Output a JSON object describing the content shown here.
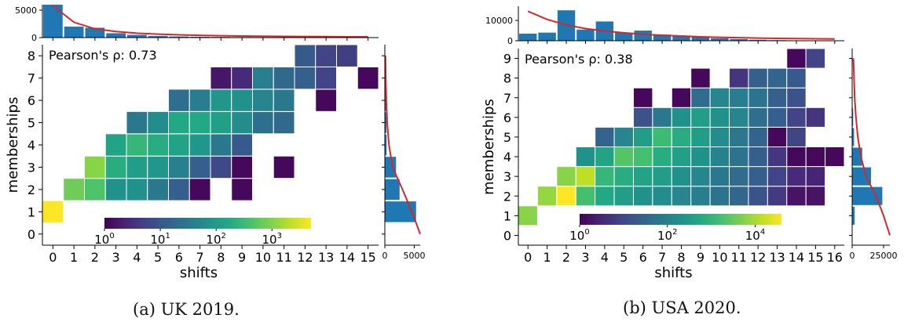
{
  "chart_data": [
    {
      "type": "heatmap",
      "subcaption": "(a) UK 2019.",
      "xlabel": "shifts",
      "ylabel": "memberships",
      "x_ticks": [
        "0",
        "1",
        "2",
        "3",
        "4",
        "5",
        "6",
        "7",
        "8",
        "9",
        "10",
        "11",
        "12",
        "13",
        "14",
        "15"
      ],
      "y_ticks": [
        "0",
        "1",
        "2",
        "3",
        "4",
        "5",
        "6",
        "7",
        "8"
      ],
      "annotation": "Pearson's ρ: 0.73",
      "colorbar": {
        "scale": "log",
        "colormap": "viridis",
        "tick_labels": [
          {
            "base": "10",
            "exp": "0"
          },
          {
            "base": "10",
            "exp": "1"
          },
          {
            "base": "10",
            "exp": "2"
          },
          {
            "base": "10",
            "exp": "3"
          }
        ],
        "log_range": [
          0,
          3.7
        ]
      },
      "cells_by_row": [
        {
          "y": 1,
          "cells": [
            [
              0,
              1.0
            ]
          ]
        },
        {
          "y": 2,
          "cells": [
            [
              1,
              0.78
            ],
            [
              2,
              0.72
            ],
            [
              3,
              0.5
            ],
            [
              4,
              0.5
            ],
            [
              5,
              0.4
            ],
            [
              6,
              0.3
            ],
            [
              7,
              0.02
            ],
            [
              9,
              0.02
            ]
          ]
        },
        {
          "y": 3,
          "cells": [
            [
              2,
              0.82
            ],
            [
              3,
              0.62
            ],
            [
              4,
              0.55
            ],
            [
              5,
              0.52
            ],
            [
              6,
              0.43
            ],
            [
              7,
              0.3
            ],
            [
              8,
              0.22
            ],
            [
              9,
              0.02
            ],
            [
              11,
              0.02
            ]
          ]
        },
        {
          "y": 4,
          "cells": [
            [
              3,
              0.58
            ],
            [
              4,
              0.66
            ],
            [
              5,
              0.62
            ],
            [
              6,
              0.58
            ],
            [
              7,
              0.52
            ],
            [
              8,
              0.4
            ],
            [
              9,
              0.28
            ]
          ]
        },
        {
          "y": 5,
          "cells": [
            [
              4,
              0.4
            ],
            [
              5,
              0.48
            ],
            [
              6,
              0.6
            ],
            [
              7,
              0.6
            ],
            [
              8,
              0.56
            ],
            [
              9,
              0.48
            ],
            [
              10,
              0.36
            ],
            [
              11,
              0.34
            ]
          ]
        },
        {
          "y": 6,
          "cells": [
            [
              6,
              0.36
            ],
            [
              7,
              0.42
            ],
            [
              8,
              0.52
            ],
            [
              9,
              0.5
            ],
            [
              10,
              0.45
            ],
            [
              11,
              0.4
            ],
            [
              13,
              0.02
            ]
          ]
        },
        {
          "y": 7,
          "cells": [
            [
              8,
              0.06
            ],
            [
              9,
              0.12
            ],
            [
              10,
              0.42
            ],
            [
              11,
              0.34
            ],
            [
              12,
              0.3
            ],
            [
              13,
              0.2
            ],
            [
              15,
              0.02
            ]
          ]
        },
        {
          "y": 8,
          "cells": [
            [
              12,
              0.28
            ],
            [
              13,
              0.2
            ],
            [
              14,
              0.18
            ]
          ]
        }
      ],
      "top_marginal": {
        "yticks": [
          "0",
          "5000"
        ],
        "ymax": 6000,
        "values": [
          6000,
          2000,
          1800,
          800,
          500,
          300,
          200,
          150,
          120,
          100,
          90,
          80,
          70,
          60,
          50,
          40
        ],
        "fit": [
          5800,
          2800,
          1600,
          1100,
          800,
          620,
          500,
          410,
          340,
          290,
          250,
          220,
          190,
          170,
          150,
          135
        ]
      },
      "right_marginal": {
        "xticks": [
          "0",
          "5000"
        ],
        "xmax": 6000,
        "values": [
          0,
          5300,
          2500,
          1900,
          300,
          280,
          200,
          50,
          30
        ],
        "fit": [
          6000,
          4600,
          3000,
          1300,
          700,
          400,
          250,
          150,
          100
        ]
      }
    },
    {
      "type": "heatmap",
      "subcaption": "(b) USA 2020.",
      "xlabel": "shifts",
      "ylabel": "memberships",
      "x_ticks": [
        "0",
        "1",
        "2",
        "3",
        "4",
        "5",
        "6",
        "7",
        "8",
        "9",
        "10",
        "11",
        "12",
        "13",
        "14",
        "15",
        "16"
      ],
      "y_ticks": [
        "0",
        "1",
        "2",
        "3",
        "4",
        "5",
        "6",
        "7",
        "8",
        "9"
      ],
      "annotation": "Pearson's ρ: 0.38",
      "colorbar": {
        "scale": "log",
        "colormap": "viridis",
        "tick_labels": [
          {
            "base": "10",
            "exp": "0"
          },
          {
            "base": "10",
            "exp": "2"
          },
          {
            "base": "10",
            "exp": "4"
          }
        ],
        "log_range": [
          0,
          4.6
        ]
      },
      "cells_by_row": [
        {
          "y": 1,
          "cells": [
            [
              0,
              0.82
            ]
          ]
        },
        {
          "y": 2,
          "cells": [
            [
              1,
              0.84
            ],
            [
              2,
              1.0
            ],
            [
              3,
              0.7
            ],
            [
              4,
              0.6
            ],
            [
              5,
              0.55
            ],
            [
              6,
              0.5
            ],
            [
              7,
              0.48
            ],
            [
              8,
              0.45
            ],
            [
              9,
              0.42
            ],
            [
              10,
              0.38
            ],
            [
              11,
              0.33
            ],
            [
              12,
              0.26
            ],
            [
              13,
              0.17
            ],
            [
              14,
              0.05
            ],
            [
              15,
              0.05
            ]
          ]
        },
        {
          "y": 3,
          "cells": [
            [
              2,
              0.82
            ],
            [
              3,
              0.9
            ],
            [
              4,
              0.66
            ],
            [
              5,
              0.62
            ],
            [
              6,
              0.58
            ],
            [
              7,
              0.55
            ],
            [
              8,
              0.5
            ],
            [
              9,
              0.46
            ],
            [
              10,
              0.4
            ],
            [
              11,
              0.35
            ],
            [
              12,
              0.3
            ],
            [
              13,
              0.2
            ],
            [
              14,
              0.12
            ],
            [
              15,
              0.1
            ]
          ]
        },
        {
          "y": 4,
          "cells": [
            [
              3,
              0.5
            ],
            [
              4,
              0.58
            ],
            [
              5,
              0.73
            ],
            [
              6,
              0.7
            ],
            [
              7,
              0.62
            ],
            [
              8,
              0.56
            ],
            [
              9,
              0.5
            ],
            [
              10,
              0.44
            ],
            [
              11,
              0.38
            ],
            [
              12,
              0.3
            ],
            [
              13,
              0.16
            ],
            [
              14,
              0.02
            ],
            [
              15,
              0.02
            ],
            [
              16,
              0.02
            ]
          ]
        },
        {
          "y": 5,
          "cells": [
            [
              4,
              0.32
            ],
            [
              5,
              0.45
            ],
            [
              6,
              0.55
            ],
            [
              7,
              0.68
            ],
            [
              8,
              0.62
            ],
            [
              9,
              0.55
            ],
            [
              10,
              0.48
            ],
            [
              11,
              0.4
            ],
            [
              12,
              0.32
            ],
            [
              13,
              0.02
            ],
            [
              14,
              0.2
            ]
          ]
        },
        {
          "y": 6,
          "cells": [
            [
              6,
              0.25
            ],
            [
              7,
              0.4
            ],
            [
              8,
              0.5
            ],
            [
              9,
              0.55
            ],
            [
              10,
              0.5
            ],
            [
              11,
              0.45
            ],
            [
              12,
              0.36
            ],
            [
              13,
              0.3
            ],
            [
              14,
              0.2
            ],
            [
              15,
              0.15
            ]
          ]
        },
        {
          "y": 7,
          "cells": [
            [
              6,
              0.02
            ],
            [
              8,
              0.02
            ],
            [
              9,
              0.35
            ],
            [
              10,
              0.45
            ],
            [
              11,
              0.42
            ],
            [
              12,
              0.38
            ],
            [
              13,
              0.3
            ],
            [
              14,
              0.25
            ]
          ]
        },
        {
          "y": 8,
          "cells": [
            [
              9,
              0.02
            ],
            [
              11,
              0.15
            ],
            [
              12,
              0.3
            ],
            [
              13,
              0.32
            ],
            [
              14,
              0.28
            ]
          ]
        },
        {
          "y": 9,
          "cells": [
            [
              14,
              0.02
            ],
            [
              15,
              0.2
            ]
          ]
        }
      ],
      "top_marginal": {
        "yticks": [
          "0",
          "10000"
        ],
        "ymax": 17000,
        "values": [
          3500,
          4000,
          15000,
          5500,
          9500,
          4000,
          5000,
          3000,
          2500,
          1800,
          1200,
          800,
          500,
          300,
          200,
          100,
          50
        ],
        "fit": [
          14500,
          10500,
          7800,
          6000,
          4800,
          3900,
          3200,
          2700,
          2300,
          1950,
          1700,
          1500,
          1300,
          1150,
          1050,
          950,
          880
        ]
      },
      "right_marginal": {
        "xticks": [
          "0",
          "25000"
        ],
        "xmax": 30000,
        "values": [
          0,
          2000,
          24000,
          15000,
          8000,
          1500,
          800,
          300,
          200,
          50
        ],
        "fit": [
          30000,
          25000,
          19000,
          11000,
          7000,
          4500,
          3000,
          2000,
          1500,
          1000
        ]
      }
    }
  ]
}
